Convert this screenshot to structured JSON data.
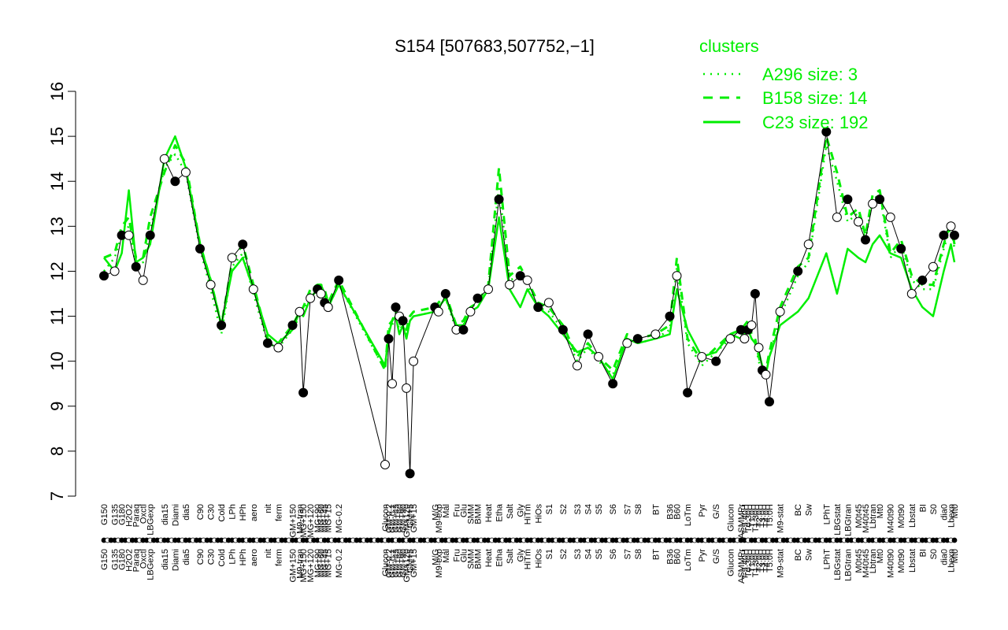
{
  "chart_data": {
    "type": "line",
    "title": "S154 [507683,507752,−1]",
    "xlabel": "",
    "ylabel": "",
    "ylim": [
      7,
      16
    ],
    "yticks": [
      7,
      8,
      9,
      10,
      11,
      12,
      13,
      14,
      15,
      16
    ],
    "grid": false,
    "legend": {
      "title": "clusters",
      "placement": "top-right",
      "entries": [
        {
          "label": "A296 size: 3",
          "style": "dotted"
        },
        {
          "label": "B158 size: 14",
          "style": "dashed"
        },
        {
          "label": "C23 size: 192",
          "style": "solid"
        }
      ]
    },
    "colors": {
      "series": "#00ee00",
      "points": "#000000",
      "text": "#000000"
    },
    "x_labels": [
      "G150",
      "G135",
      "G180",
      "H2O2",
      "Paraq",
      "Oxctl",
      "LBGexp",
      "dia15",
      "Diami",
      "dia5",
      "C90",
      "C30",
      "Cold",
      "LPh",
      "HPh",
      "aero",
      "nit",
      "ferm",
      "GM+150",
      "M9-tran",
      "MG+150",
      "MG+120",
      "MG+90",
      "MG+60",
      "MG+45",
      "MG+15",
      "MG-0.2",
      "Glucon",
      "GM-0.2",
      "GM-0.1",
      "GM+45",
      "GM+60",
      "GM+90",
      "GM+120",
      "GM+5",
      "GM+15",
      "M/G",
      "M9-exp",
      "Mal",
      "Fru",
      "Glu",
      "SMM",
      "BMM",
      "Heat",
      "Etha",
      "Salt",
      "Gly",
      "HiTm",
      "HiOs",
      "S1",
      "S2",
      "S3",
      "S4",
      "S5",
      "S6",
      "S7",
      "S8",
      "BT",
      "B36",
      "B60",
      "LoTm",
      "Pyr",
      "G/S",
      "Glucon",
      "ASMMPr",
      "T-5.40H",
      "T0.30H",
      "T1.0H",
      "T1.30H",
      "T2.0H",
      "T3.0H",
      "T4.0H",
      "T5.0H",
      "M9-stat",
      "BC",
      "Sw",
      "LPhT",
      "LBGstat",
      "LBGtran",
      "M0t45",
      "M40t45",
      "Lbtran",
      "Mt0",
      "M40t90",
      "M0t90",
      "Lbstat",
      "BI",
      "S0",
      "dia0",
      "Lbexp",
      "Mt0"
    ],
    "x_label_slots": [
      0,
      3,
      5,
      7,
      9,
      11,
      13,
      17,
      20,
      23,
      27,
      30,
      33,
      36,
      39,
      42,
      46,
      49,
      53,
      55,
      56,
      58,
      60,
      61,
      62,
      63,
      66,
      79,
      80,
      81,
      82,
      83,
      84,
      85,
      86,
      87,
      93,
      94,
      96,
      99,
      101,
      103,
      105,
      108,
      111,
      114,
      117,
      119,
      122,
      125,
      129,
      133,
      136,
      139,
      143,
      147,
      150,
      155,
      159,
      161,
      164,
      168,
      172,
      176,
      179,
      180,
      181,
      182,
      183,
      184,
      185,
      186,
      187,
      190,
      195,
      198,
      203,
      206,
      209,
      212,
      214,
      216,
      218,
      221,
      224,
      227,
      230,
      233,
      236,
      238,
      239
    ],
    "series": [
      {
        "cluster": "C23",
        "style": "solid",
        "values": [
          12.3,
          12.0,
          12.4,
          13.8,
          12.2,
          12.3,
          12.6,
          14.5,
          15.0,
          14.3,
          12.6,
          11.8,
          10.8,
          12.0,
          12.3,
          11.6,
          10.6,
          10.4,
          10.7,
          11.1,
          11.0,
          11.4,
          11.6,
          11.7,
          11.5,
          11.2,
          11.7,
          9.9,
          10.6,
          10.9,
          11.0,
          10.6,
          10.8,
          10.5,
          10.9,
          11.0,
          11.1,
          11.2,
          11.4,
          10.8,
          10.8,
          11.1,
          11.2,
          11.6,
          13.2,
          11.6,
          11.2,
          11.6,
          11.2,
          11.0,
          10.6,
          10.2,
          10.3,
          10.1,
          9.6,
          10.5,
          10.4,
          10.5,
          10.6,
          11.6,
          10.7,
          10.1,
          10.2,
          10.6,
          10.5,
          10.6,
          10.7,
          10.5,
          10.4,
          10.2,
          9.9,
          9.7,
          10.1,
          10.8,
          11.1,
          11.4,
          12.4,
          11.5,
          12.5,
          12.3,
          12.2,
          12.6,
          12.8,
          12.4,
          12.3,
          11.6,
          11.2,
          11.0,
          12.0,
          12.6,
          12.2
        ]
      },
      {
        "cluster": "B158",
        "style": "dashed",
        "values": [
          12.3,
          12.4,
          13.0,
          13.2,
          12.3,
          12.3,
          13.2,
          14.2,
          14.8,
          14.4,
          12.6,
          11.8,
          10.8,
          12.2,
          12.6,
          11.7,
          10.5,
          10.4,
          10.8,
          11.1,
          11.2,
          11.6,
          11.7,
          11.7,
          11.6,
          11.3,
          11.8,
          9.8,
          10.8,
          10.9,
          11.1,
          10.8,
          10.9,
          10.7,
          11.0,
          11.1,
          11.2,
          11.3,
          11.5,
          10.8,
          10.9,
          11.2,
          11.3,
          11.7,
          14.3,
          11.9,
          12.1,
          11.8,
          11.3,
          11.2,
          10.8,
          10.1,
          10.4,
          10.1,
          9.8,
          10.6,
          10.5,
          10.6,
          10.8,
          12.3,
          10.5,
          10.0,
          10.3,
          10.6,
          10.7,
          10.8,
          10.9,
          10.6,
          10.5,
          10.1,
          9.8,
          9.8,
          10.2,
          11.2,
          12.1,
          12.3,
          15.0,
          14.2,
          13.2,
          13.4,
          12.8,
          13.7,
          13.8,
          12.4,
          12.7,
          11.9,
          11.7,
          11.7,
          12.6,
          13.1,
          12.6
        ]
      },
      {
        "cluster": "A296",
        "style": "dotted",
        "values": [
          12.0,
          12.3,
          12.8,
          13.0,
          12.1,
          12.2,
          12.9,
          14.3,
          14.6,
          14.2,
          12.5,
          11.6,
          10.6,
          12.1,
          12.4,
          11.5,
          10.4,
          10.3,
          10.7,
          11.0,
          11.1,
          11.5,
          11.6,
          11.6,
          11.5,
          11.2,
          11.7,
          9.8,
          10.7,
          10.8,
          11.0,
          10.7,
          10.8,
          10.6,
          10.9,
          11.0,
          11.1,
          11.2,
          11.4,
          10.7,
          10.8,
          11.1,
          11.2,
          11.6,
          13.9,
          11.8,
          11.9,
          11.7,
          11.2,
          11.1,
          10.7,
          10.0,
          10.3,
          10.0,
          9.7,
          10.5,
          10.4,
          10.5,
          10.7,
          12.1,
          10.4,
          9.9,
          10.2,
          10.5,
          10.6,
          10.7,
          10.8,
          10.5,
          10.4,
          10.0,
          9.7,
          9.7,
          10.1,
          11.0,
          11.9,
          12.2,
          14.8,
          14.0,
          13.1,
          13.3,
          12.7,
          13.6,
          13.7,
          12.3,
          12.6,
          11.8,
          11.6,
          11.6,
          12.5,
          13.0,
          12.5
        ]
      },
      {
        "cluster": "points",
        "style": "points",
        "values": [
          11.9,
          12.0,
          12.8,
          12.8,
          12.1,
          11.8,
          12.8,
          14.5,
          14.0,
          14.2,
          12.5,
          11.7,
          10.8,
          12.3,
          12.6,
          11.6,
          10.4,
          10.3,
          10.8,
          11.1,
          9.3,
          11.4,
          11.6,
          11.5,
          11.3,
          11.2,
          11.8,
          7.7,
          10.5,
          9.5,
          11.2,
          11.0,
          10.9,
          9.4,
          7.5,
          10.0,
          11.2,
          11.1,
          11.5,
          10.7,
          10.7,
          11.1,
          11.4,
          11.6,
          13.6,
          11.7,
          11.9,
          11.8,
          11.2,
          11.3,
          10.7,
          9.9,
          10.6,
          10.1,
          9.5,
          10.4,
          10.5,
          10.6,
          11.0,
          11.9,
          9.3,
          10.1,
          10.0,
          10.5,
          10.7,
          10.5,
          10.7,
          10.8,
          11.5,
          10.3,
          9.8,
          9.7,
          9.1,
          11.1,
          12.0,
          12.6,
          15.1,
          13.2,
          13.6,
          13.1,
          12.7,
          13.5,
          13.6,
          13.2,
          12.5,
          11.5,
          11.8,
          12.1,
          12.8,
          13.0,
          12.8
        ]
      }
    ]
  }
}
